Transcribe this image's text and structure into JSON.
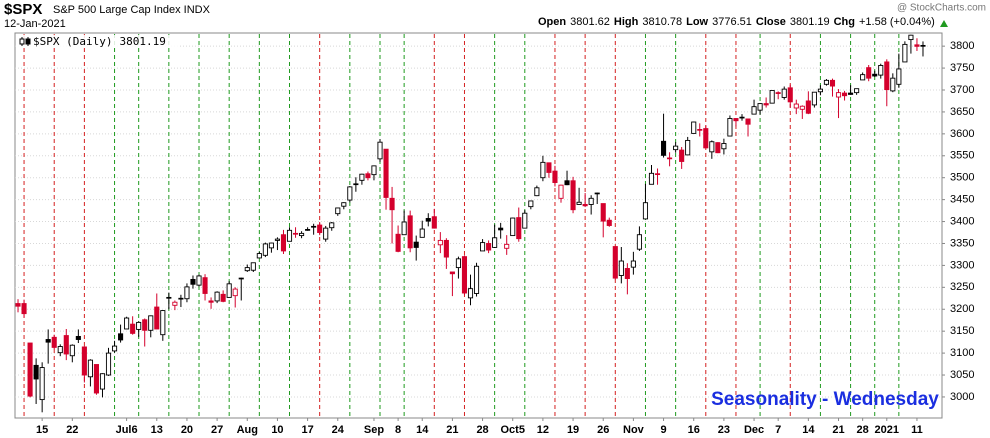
{
  "chart_data": {
    "type": "candlestick",
    "symbol": "$SPX",
    "name": "S&P 500 Large Cap Index INDX",
    "date": "12-Jan-2021",
    "ohlc_labels": [
      "Open",
      "High",
      "Low",
      "Close",
      "Chg"
    ],
    "change": "+1.58 (+0.04%)",
    "watermark": "@ StockCharts.com",
    "legend": "$SPX (Daily)",
    "annotation": "Seasonality - Wednesday",
    "annotation_color": "#1a2ee0",
    "up_color": "#000000",
    "down_color": "#d4002c",
    "line_up_color": "#1f9a1f",
    "line_down_color": "#d42020",
    "grid": true,
    "ylim": [
      2952,
      3830
    ],
    "yticks": [
      3000,
      3050,
      3100,
      3150,
      3200,
      3250,
      3300,
      3350,
      3400,
      3450,
      3500,
      3550,
      3600,
      3650,
      3700,
      3750,
      3800
    ],
    "categories": [
      null,
      null,
      null,
      null,
      "15",
      null,
      null,
      null,
      null,
      "22",
      null,
      null,
      null,
      null,
      null,
      null,
      null,
      null,
      "Jul6",
      null,
      null,
      null,
      null,
      "13",
      null,
      null,
      null,
      null,
      "20",
      null,
      null,
      null,
      null,
      "27",
      null,
      null,
      null,
      null,
      "Aug",
      null,
      null,
      null,
      null,
      "10",
      null,
      null,
      null,
      null,
      "17",
      null,
      null,
      null,
      null,
      "24",
      null,
      null,
      null,
      null,
      null,
      "Sep",
      null,
      null,
      null,
      "8",
      null,
      null,
      null,
      "14",
      null,
      null,
      null,
      null,
      "21",
      null,
      null,
      null,
      null,
      "28",
      null,
      null,
      null,
      null,
      "Oct5",
      null,
      null,
      null,
      null,
      "12",
      null,
      null,
      null,
      null,
      "19",
      null,
      null,
      null,
      null,
      "26",
      null,
      null,
      null,
      null,
      "Nov",
      null,
      null,
      null,
      null,
      "9",
      null,
      null,
      null,
      null,
      "16",
      null,
      null,
      null,
      null,
      "23",
      null,
      null,
      null,
      null,
      "Dec",
      null,
      null,
      null,
      "7",
      null,
      null,
      null,
      null,
      "14",
      null,
      null,
      null,
      null,
      "21",
      null,
      null,
      null,
      "28",
      null,
      null,
      null,
      "2021",
      null,
      null,
      null,
      null,
      "11",
      null
    ],
    "wednesday_index": [
      1,
      6,
      11,
      16,
      20,
      25,
      30,
      35,
      40,
      45,
      50,
      55,
      60,
      64,
      69,
      74,
      79,
      84,
      89,
      94,
      99,
      104,
      109,
      114,
      119,
      123,
      128,
      133,
      138,
      142,
      146
    ],
    "open": [
      3213,
      3213,
      3123,
      3072,
      2994,
      3131,
      3136,
      3101,
      3140,
      3094,
      3138,
      3114,
      3046,
      3074,
      3018,
      3050,
      3105,
      3144,
      3155,
      3166,
      3154,
      3176,
      3152,
      3205,
      3142,
      3226,
      3209,
      3224,
      3224,
      3268,
      3255,
      3272,
      3219,
      3219,
      3234,
      3227,
      3231,
      3270,
      3288,
      3289,
      3317,
      3323,
      3340,
      3357,
      3370,
      3355,
      3372,
      3368,
      3380,
      3388,
      3392,
      3360,
      3386,
      3418,
      3435,
      3449,
      3486,
      3494,
      3509,
      3507,
      3543,
      3565,
      3453,
      3371,
      3370,
      3413,
      3353,
      3364,
      3407,
      3411,
      3347,
      3357,
      3285,
      3295,
      3320,
      3226,
      3236,
      3333,
      3350,
      3341,
      3385,
      3339,
      3368,
      3409,
      3385,
      3434,
      3459,
      3500,
      3534,
      3515,
      3453,
      3493,
      3493,
      3439,
      3439,
      3439,
      3464,
      3441,
      3403,
      3343,
      3277,
      3293,
      3296,
      3337,
      3406,
      3485,
      3508,
      3583,
      3544,
      3564,
      3563,
      3552,
      3601,
      3610,
      3612,
      3559,
      3580,
      3566,
      3595,
      3635,
      3638,
      3634,
      3645,
      3654,
      3669,
      3670,
      3694,
      3683,
      3705,
      3659,
      3656,
      3675,
      3666,
      3696,
      3713,
      3722,
      3684,
      3693,
      3693,
      3694,
      3723,
      3751,
      3736,
      3734,
      3764,
      3698,
      3713,
      3764,
      3815,
      3803,
      3801.62
    ],
    "high": [
      3223,
      3222,
      3123,
      3088,
      3079,
      3154,
      3142,
      3120,
      3155,
      3120,
      3154,
      3116,
      3086,
      3074,
      3054,
      3112,
      3128,
      3165,
      3183,
      3184,
      3172,
      3179,
      3186,
      3236,
      3198,
      3238,
      3220,
      3233,
      3259,
      3277,
      3279,
      3280,
      3227,
      3241,
      3243,
      3264,
      3250,
      3272,
      3302,
      3306,
      3331,
      3352,
      3352,
      3364,
      3381,
      3387,
      3387,
      3378,
      3387,
      3395,
      3399,
      3390,
      3399,
      3432,
      3444,
      3481,
      3501,
      3509,
      3514,
      3528,
      3588,
      3565,
      3479,
      3391,
      3425,
      3425,
      3368,
      3402,
      3419,
      3429,
      3376,
      3362,
      3285,
      3320,
      3323,
      3279,
      3306,
      3360,
      3357,
      3393,
      3397,
      3369,
      3409,
      3432,
      3426,
      3447,
      3482,
      3550,
      3534,
      3527,
      3484,
      3516,
      3502,
      3477,
      3465,
      3460,
      3466,
      3441,
      3409,
      3343,
      3342,
      3305,
      3331,
      3389,
      3486,
      3529,
      3521,
      3646,
      3558,
      3581,
      3570,
      3593,
      3628,
      3624,
      3619,
      3585,
      3581,
      3589,
      3642,
      3635,
      3645,
      3634,
      3678,
      3670,
      3683,
      3699,
      3697,
      3708,
      3712,
      3678,
      3665,
      3697,
      3695,
      3711,
      3725,
      3726,
      3702,
      3698,
      3711,
      3703,
      3740,
      3757,
      3744,
      3760,
      3770,
      3738,
      3783,
      3811,
      3826,
      3818,
      3810.78
    ],
    "low": [
      3193,
      3181,
      2999,
      2984,
      2965,
      3076,
      3109,
      3093,
      3084,
      3079,
      3123,
      3033,
      3024,
      3005,
      2999,
      3048,
      3101,
      3124,
      3155,
      3142,
      3137,
      3115,
      3136,
      3154,
      3128,
      3200,
      3198,
      3205,
      3216,
      3247,
      3252,
      3220,
      3201,
      3214,
      3216,
      3227,
      3204,
      3220,
      3285,
      3285,
      3317,
      3319,
      3329,
      3335,
      3326,
      3355,
      3363,
      3362,
      3379,
      3370,
      3369,
      3354,
      3379,
      3413,
      3428,
      3444,
      3468,
      3484,
      3494,
      3494,
      3536,
      3427,
      3350,
      3330,
      3370,
      3330,
      3311,
      3364,
      3389,
      3384,
      3328,
      3292,
      3230,
      3270,
      3232,
      3209,
      3229,
      3333,
      3328,
      3340,
      3361,
      3324,
      3368,
      3354,
      3385,
      3428,
      3458,
      3492,
      3500,
      3480,
      3443,
      3483,
      3419,
      3439,
      3433,
      3416,
      3440,
      3364,
      3388,
      3268,
      3259,
      3234,
      3279,
      3333,
      3405,
      3485,
      3484,
      3546,
      3526,
      3557,
      3520,
      3552,
      3601,
      3594,
      3567,
      3543,
      3556,
      3553,
      3595,
      3617,
      3630,
      3594,
      3645,
      3644,
      3660,
      3670,
      3679,
      3678,
      3660,
      3645,
      3634,
      3645,
      3660,
      3688,
      3710,
      3685,
      3636,
      3676,
      3689,
      3689,
      3723,
      3720,
      3730,
      3726,
      3663,
      3695,
      3705,
      3764,
      3783,
      3789,
      3776.51
    ],
    "close": [
      3207,
      3190,
      3002,
      3041,
      3067,
      3125,
      3113,
      3115,
      3098,
      3118,
      3131,
      3050,
      3084,
      3009,
      3053,
      3100,
      3116,
      3130,
      3180,
      3145,
      3170,
      3152,
      3185,
      3155,
      3197,
      3227,
      3216,
      3225,
      3251,
      3257,
      3276,
      3236,
      3216,
      3239,
      3218,
      3258,
      3246,
      3271,
      3295,
      3306,
      3327,
      3349,
      3351,
      3360,
      3333,
      3380,
      3373,
      3373,
      3382,
      3389,
      3375,
      3385,
      3397,
      3431,
      3443,
      3479,
      3485,
      3508,
      3500,
      3527,
      3581,
      3455,
      3427,
      3332,
      3399,
      3340,
      3341,
      3383,
      3401,
      3385,
      3357,
      3319,
      3281,
      3315,
      3237,
      3247,
      3298,
      3352,
      3335,
      3363,
      3381,
      3348,
      3408,
      3361,
      3419,
      3447,
      3477,
      3535,
      3512,
      3489,
      3483,
      3484,
      3427,
      3444,
      3436,
      3453,
      3465,
      3401,
      3391,
      3271,
      3310,
      3270,
      3310,
      3370,
      3443,
      3510,
      3509,
      3551,
      3545,
      3572,
      3537,
      3585,
      3627,
      3610,
      3568,
      3582,
      3557,
      3578,
      3635,
      3630,
      3638,
      3622,
      3662,
      3669,
      3666,
      3699,
      3692,
      3702,
      3673,
      3668,
      3663,
      3647,
      3695,
      3702,
      3722,
      3709,
      3694,
      3687,
      3690,
      3703,
      3735,
      3727,
      3732,
      3756,
      3701,
      3727,
      3748,
      3804,
      3825,
      3799.61,
      3801.19
    ]
  }
}
